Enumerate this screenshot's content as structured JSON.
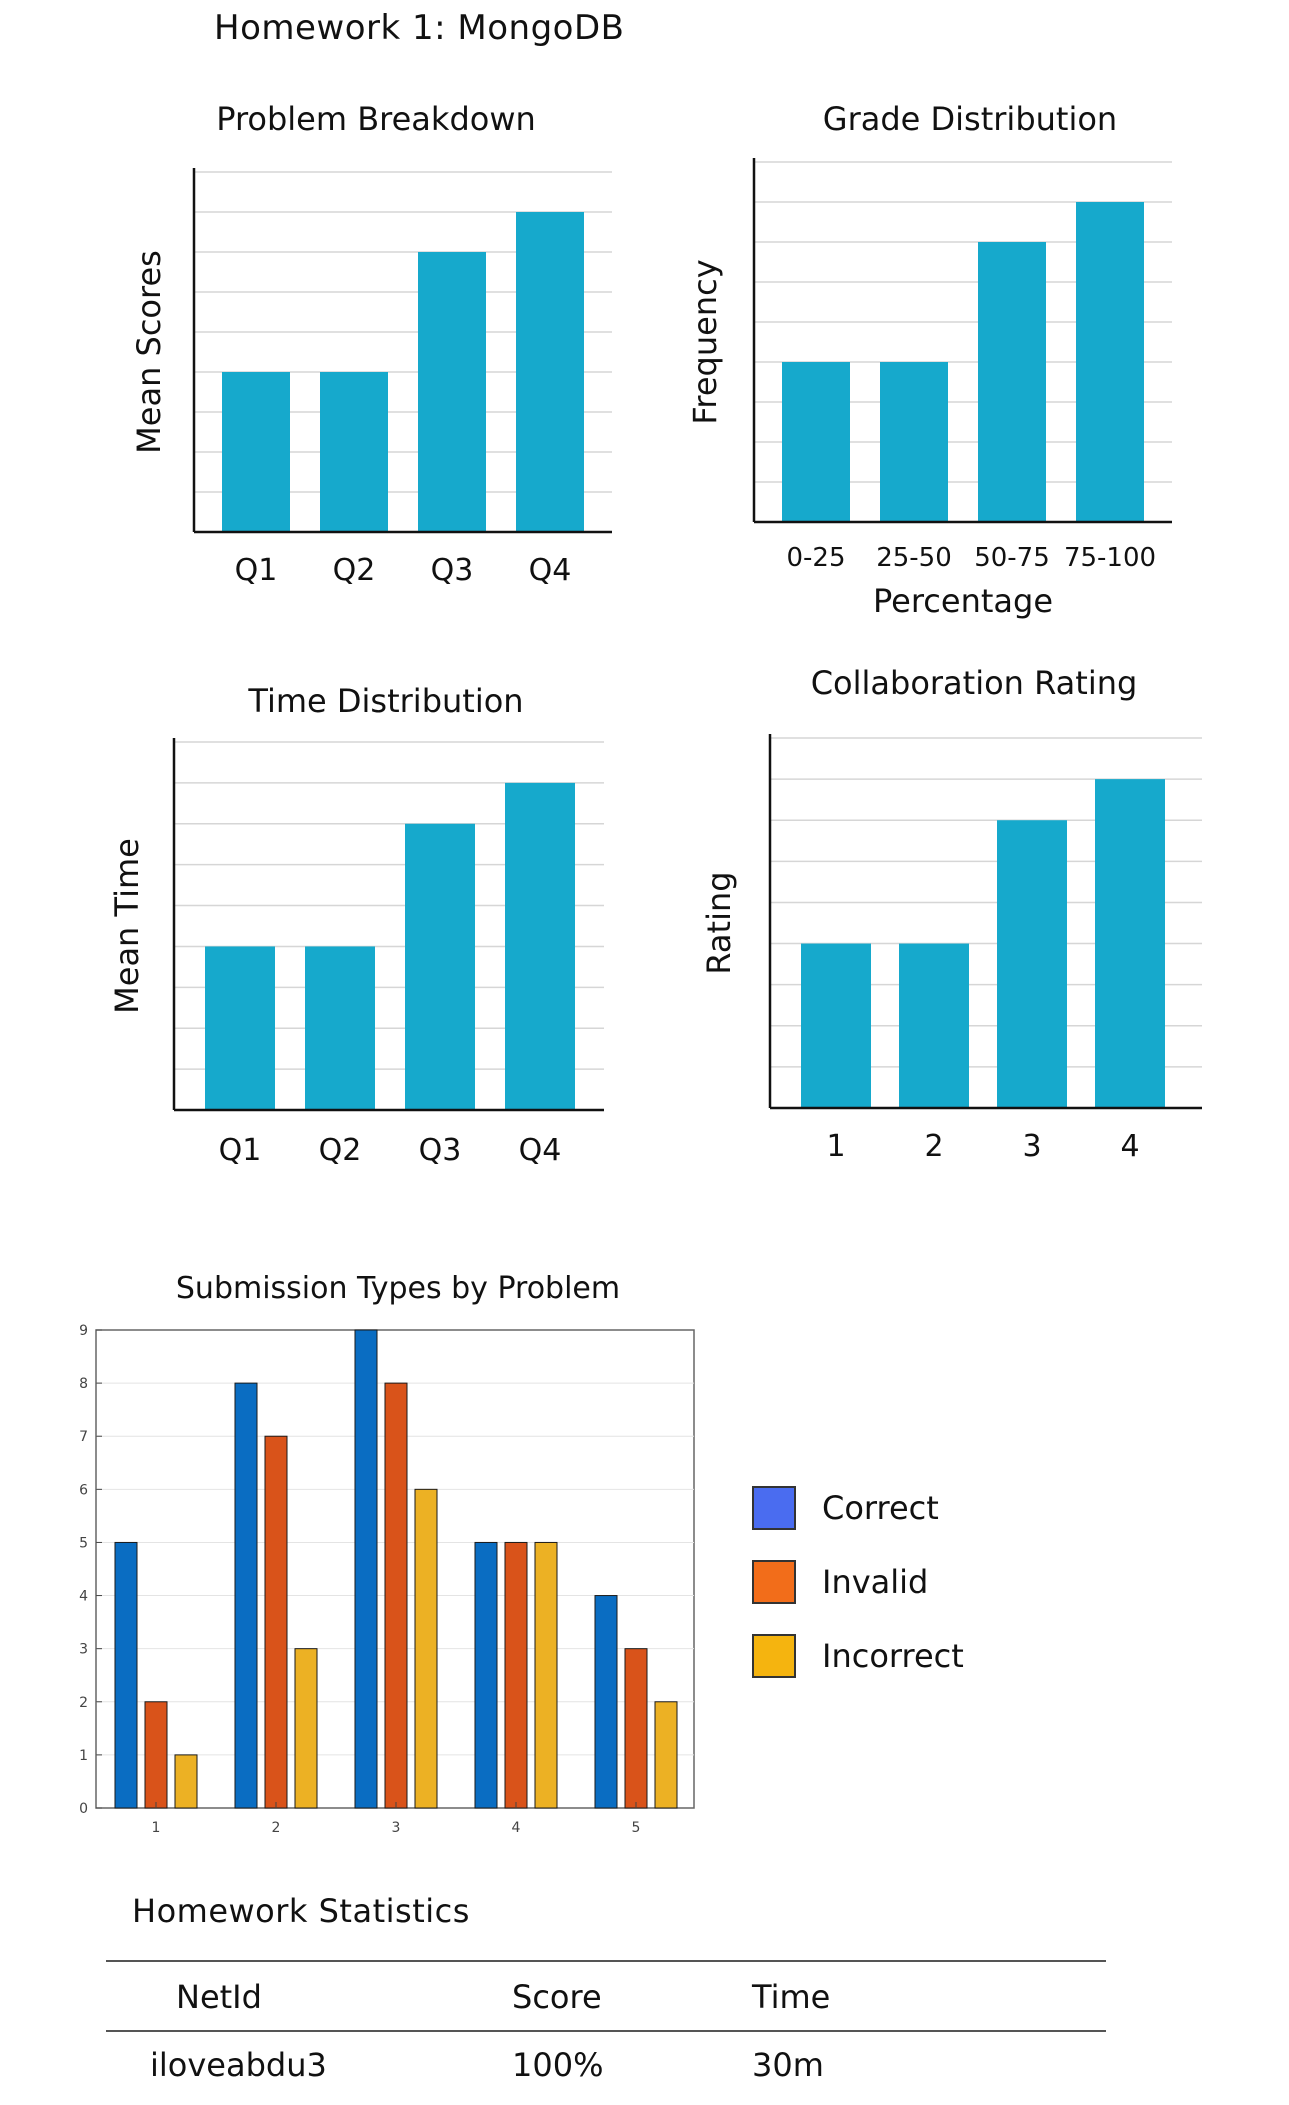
{
  "page_title": "Homework 1: MongoDB",
  "colors": {
    "bar": "#16a9cc",
    "correct": "#0a6dc2",
    "invalid": "#d9531a",
    "incorrect": "#ecb124",
    "legend_correct": "#4a6cf0",
    "legend_invalid": "#f26d1a",
    "legend_incorrect": "#f5b40f"
  },
  "chart_data": [
    {
      "id": "problem-breakdown",
      "type": "bar",
      "title": "Problem Breakdown",
      "xlabel": "",
      "ylabel": "Mean Scores",
      "categories": [
        "Q1",
        "Q2",
        "Q3",
        "Q4"
      ],
      "values": [
        4,
        4,
        7,
        8
      ],
      "ylim": [
        0,
        9
      ],
      "grid": true
    },
    {
      "id": "grade-distribution",
      "type": "bar",
      "title": "Grade Distribution",
      "xlabel": "Percentage",
      "ylabel": "Frequency",
      "categories": [
        "0-25",
        "25-50",
        "50-75",
        "75-100"
      ],
      "values": [
        4,
        4,
        7,
        8
      ],
      "ylim": [
        0,
        9
      ],
      "grid": true
    },
    {
      "id": "time-distribution",
      "type": "bar",
      "title": "Time Distribution",
      "xlabel": "",
      "ylabel": "Mean Time",
      "categories": [
        "Q1",
        "Q2",
        "Q3",
        "Q4"
      ],
      "values": [
        4,
        4,
        7,
        8
      ],
      "ylim": [
        0,
        9
      ],
      "grid": true
    },
    {
      "id": "collaboration-rating",
      "type": "bar",
      "title": "Collaboration Rating",
      "xlabel": "",
      "ylabel": "Rating",
      "categories": [
        "1",
        "2",
        "3",
        "4"
      ],
      "values": [
        4,
        4,
        7,
        8
      ],
      "ylim": [
        0,
        9
      ],
      "grid": true
    },
    {
      "id": "submission-types",
      "type": "bar",
      "title": "Submission Types by Problem",
      "xlabel": "",
      "ylabel": "",
      "categories": [
        "1",
        "2",
        "3",
        "4",
        "5"
      ],
      "series": [
        {
          "name": "Correct",
          "values": [
            5,
            8,
            9,
            5,
            4
          ]
        },
        {
          "name": "Invalid",
          "values": [
            2,
            7,
            8,
            5,
            3
          ]
        },
        {
          "name": "Incorrect",
          "values": [
            1,
            3,
            6,
            5,
            2
          ]
        }
      ],
      "yticks": [
        "0",
        "1",
        "2",
        "3",
        "4",
        "5",
        "6",
        "7",
        "8",
        "9"
      ],
      "ylim": [
        0,
        9
      ],
      "grid": true,
      "legend": "right"
    }
  ],
  "stats": {
    "title": "Homework Statistics",
    "columns": [
      "NetId",
      "Score",
      "Time"
    ],
    "rows": [
      [
        "iloveabdu3",
        "100%",
        "30m"
      ]
    ]
  }
}
